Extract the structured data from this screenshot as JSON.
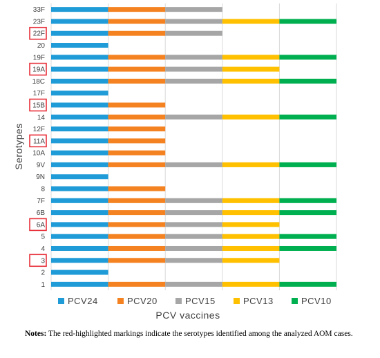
{
  "chart_data": {
    "type": "bar",
    "stacked": true,
    "orientation": "horizontal",
    "xlabel": "PCV vaccines",
    "ylabel": "Serotypes",
    "categories": [
      "1",
      "2",
      "3",
      "4",
      "5",
      "6A",
      "6B",
      "7F",
      "8",
      "9N",
      "9V",
      "10A",
      "11A",
      "12F",
      "14",
      "15B",
      "17F",
      "18C",
      "19A",
      "19F",
      "20",
      "22F",
      "23F",
      "33F"
    ],
    "highlighted": [
      "3",
      "6A",
      "11A",
      "15B",
      "19A",
      "22F"
    ],
    "grid": "vertical",
    "legend_position": "bottom",
    "series": [
      {
        "name": "PCV24",
        "color": "#1f9bd7",
        "values": [
          1,
          1,
          1,
          1,
          1,
          1,
          1,
          1,
          1,
          1,
          1,
          1,
          1,
          1,
          1,
          1,
          1,
          1,
          1,
          1,
          1,
          1,
          1,
          1
        ]
      },
      {
        "name": "PCV20",
        "color": "#f58220",
        "values": [
          1,
          0,
          1,
          1,
          1,
          1,
          1,
          1,
          1,
          0,
          1,
          1,
          1,
          1,
          1,
          1,
          0,
          1,
          1,
          1,
          0,
          1,
          1,
          1
        ]
      },
      {
        "name": "PCV15",
        "color": "#a6a6a6",
        "values": [
          1,
          0,
          1,
          1,
          1,
          1,
          1,
          1,
          0,
          0,
          1,
          0,
          0,
          0,
          1,
          0,
          0,
          1,
          1,
          1,
          0,
          1,
          1,
          1
        ]
      },
      {
        "name": "PCV13",
        "color": "#ffc000",
        "values": [
          1,
          0,
          1,
          1,
          1,
          1,
          1,
          1,
          0,
          0,
          1,
          0,
          0,
          0,
          1,
          0,
          0,
          1,
          1,
          1,
          0,
          0,
          1,
          0
        ]
      },
      {
        "name": "PCV10",
        "color": "#00b050",
        "values": [
          1,
          0,
          0,
          1,
          1,
          0,
          1,
          1,
          0,
          0,
          1,
          0,
          0,
          0,
          1,
          0,
          0,
          1,
          0,
          1,
          0,
          0,
          1,
          0
        ]
      }
    ]
  },
  "notes": {
    "label": "Notes:",
    "text": " The red-highlighted markings indicate the serotypes identified among the analyzed AOM cases."
  },
  "colors": {
    "highlight_box": "#e8303a",
    "grid": "#d9d9d9"
  }
}
